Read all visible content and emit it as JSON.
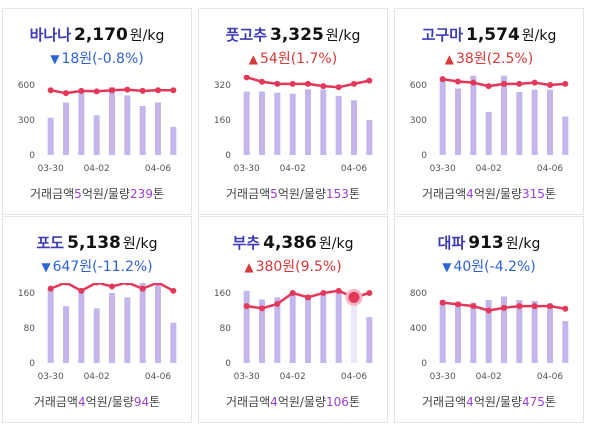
{
  "colors": {
    "name": "#3c3cb4",
    "down": "#2e63d6",
    "up": "#d63a3a",
    "bar": "#c4b6ea",
    "bar_highlight": "#ece6fa",
    "line": "#e2385a",
    "volume": "#9b3fcf"
  },
  "cards": [
    {
      "name": "바나나",
      "price": "2,170",
      "unit": "원/kg",
      "direction": "down",
      "change_icon": "triangle-down-icon",
      "change_arrow": "▼",
      "change_text": "18원(-0.8%)",
      "footer": {
        "prefix": "거래금액",
        "amount": "5",
        "mid": "억원/물량",
        "volume": "239",
        "suffix": "톤"
      },
      "chart_data": {
        "type": "bar+line",
        "x_ticks": [
          "03-30",
          "04-02",
          "04-06"
        ],
        "y_ticks": [
          "600",
          "300",
          "0"
        ],
        "ylim": [
          0,
          600
        ],
        "volume_bars": [
          320,
          450,
          540,
          340,
          580,
          510,
          420,
          450,
          240
        ],
        "price_line": [
          555,
          530,
          550,
          545,
          555,
          560,
          550,
          555,
          555
        ],
        "highlight_index": -1
      }
    },
    {
      "name": "풋고추",
      "price": "3,325",
      "unit": "원/kg",
      "direction": "up",
      "change_icon": "triangle-up-icon",
      "change_arrow": "▲",
      "change_text": "54원(1.7%)",
      "footer": {
        "prefix": "거래금액",
        "amount": "5",
        "mid": "억원/물량",
        "volume": "153",
        "suffix": "톤"
      },
      "chart_data": {
        "type": "bar+line",
        "x_ticks": [
          "03-30",
          "04-02",
          "04-06"
        ],
        "y_ticks": [
          "320",
          "160",
          "0"
        ],
        "ylim": [
          0,
          320
        ],
        "volume_bars": [
          290,
          290,
          285,
          280,
          300,
          300,
          270,
          250,
          160
        ],
        "price_line": [
          355,
          335,
          325,
          325,
          325,
          315,
          310,
          325,
          340
        ],
        "highlight_index": -1
      }
    },
    {
      "name": "고구마",
      "price": "1,574",
      "unit": "원/kg",
      "direction": "up",
      "change_icon": "triangle-up-icon",
      "change_arrow": "▲",
      "change_text": "38원(2.5%)",
      "footer": {
        "prefix": "거래금액",
        "amount": "4",
        "mid": "억원/물량",
        "volume": "315",
        "suffix": "톤"
      },
      "chart_data": {
        "type": "bar+line",
        "x_ticks": [
          "03-30",
          "04-02",
          "04-06"
        ],
        "y_ticks": [
          "600",
          "300",
          "0"
        ],
        "ylim": [
          0,
          600
        ],
        "volume_bars": [
          640,
          570,
          680,
          370,
          680,
          540,
          560,
          560,
          330
        ],
        "price_line": [
          650,
          630,
          620,
          590,
          610,
          610,
          620,
          600,
          610
        ],
        "highlight_index": -1
      }
    },
    {
      "name": "포도",
      "price": "5,138",
      "unit": "원/kg",
      "direction": "down",
      "change_icon": "triangle-down-icon",
      "change_arrow": "▼",
      "change_text": "647원(-11.2%)",
      "footer": {
        "prefix": "거래금액",
        "amount": "4",
        "mid": "억원/물량",
        "volume": "94",
        "suffix": "톤"
      },
      "chart_data": {
        "type": "bar+line",
        "x_ticks": [
          "03-30",
          "04-02",
          "04-06"
        ],
        "y_ticks": [
          "160",
          "80",
          "0"
        ],
        "ylim": [
          0,
          160
        ],
        "volume_bars": [
          170,
          130,
          165,
          125,
          160,
          150,
          200,
          185,
          92
        ],
        "price_line": [
          170,
          185,
          165,
          190,
          175,
          185,
          170,
          185,
          165
        ],
        "highlight_index": -1
      }
    },
    {
      "name": "부추",
      "price": "4,386",
      "unit": "원/kg",
      "direction": "up",
      "change_icon": "triangle-up-icon",
      "change_arrow": "▲",
      "change_text": "380원(9.5%)",
      "footer": {
        "prefix": "거래금액",
        "amount": "4",
        "mid": "억원/물량",
        "volume": "106",
        "suffix": "톤"
      },
      "chart_data": {
        "type": "bar+line",
        "x_ticks": [
          "03-30",
          "04-02",
          "04-06"
        ],
        "y_ticks": [
          "160",
          "80",
          "0"
        ],
        "ylim": [
          0,
          160
        ],
        "volume_bars": [
          165,
          145,
          150,
          160,
          150,
          155,
          160,
          145,
          105
        ],
        "price_line": [
          130,
          125,
          135,
          160,
          150,
          160,
          165,
          150,
          160
        ],
        "highlight_index": 7
      }
    },
    {
      "name": "대파",
      "price": "913",
      "unit": "원/kg",
      "direction": "down",
      "change_icon": "triangle-down-icon",
      "change_arrow": "▼",
      "change_text": "40원(-4.2%)",
      "footer": {
        "prefix": "거래금액",
        "amount": "4",
        "mid": "억원/물량",
        "volume": "475",
        "suffix": "톤"
      },
      "chart_data": {
        "type": "bar+line",
        "x_ticks": [
          "03-30",
          "04-02",
          "04-06"
        ],
        "y_ticks": [
          "800",
          "400",
          "0"
        ],
        "ylim": [
          0,
          800
        ],
        "volume_bars": [
          720,
          700,
          690,
          720,
          760,
          720,
          710,
          680,
          480
        ],
        "price_line": [
          690,
          670,
          650,
          600,
          630,
          650,
          650,
          650,
          620
        ],
        "highlight_index": -1
      }
    }
  ]
}
